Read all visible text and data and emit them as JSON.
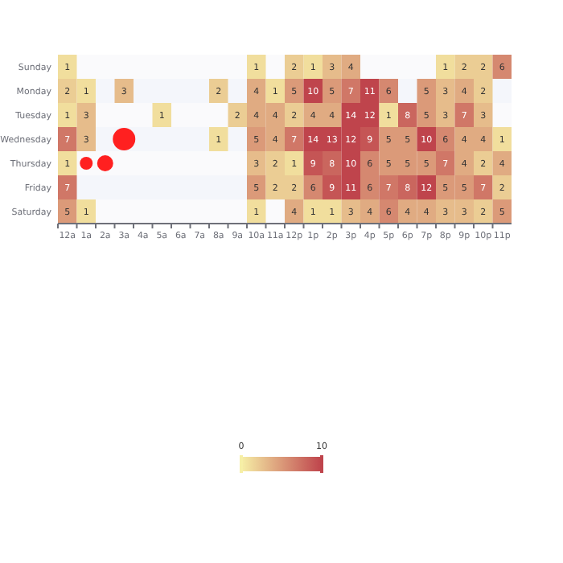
{
  "chart_data": {
    "type": "heatmap",
    "categories": [
      "12a",
      "1a",
      "2a",
      "3a",
      "4a",
      "5a",
      "6a",
      "7a",
      "8a",
      "9a",
      "10a",
      "11a",
      "12p",
      "1p",
      "2p",
      "3p",
      "4p",
      "5p",
      "6p",
      "7p",
      "8p",
      "9p",
      "10p",
      "11p"
    ],
    "y_categories": [
      "Sunday",
      "Monday",
      "Tuesday",
      "Wednesday",
      "Thursday",
      "Friday",
      "Saturday"
    ],
    "cells": [
      [
        1,
        null,
        null,
        null,
        null,
        null,
        null,
        null,
        null,
        null,
        1,
        null,
        2,
        1,
        3,
        4,
        null,
        null,
        null,
        null,
        1,
        2,
        2,
        6
      ],
      [
        2,
        1,
        null,
        3,
        null,
        null,
        null,
        null,
        2,
        null,
        4,
        1,
        5,
        10,
        5,
        7,
        11,
        6,
        null,
        5,
        3,
        4,
        2,
        null
      ],
      [
        1,
        3,
        null,
        null,
        null,
        1,
        null,
        null,
        null,
        2,
        4,
        4,
        2,
        4,
        4,
        14,
        12,
        1,
        8,
        5,
        3,
        7,
        3,
        null
      ],
      [
        7,
        3,
        null,
        null,
        null,
        null,
        null,
        null,
        1,
        null,
        5,
        4,
        7,
        14,
        13,
        12,
        9,
        5,
        5,
        10,
        6,
        4,
        4,
        1
      ],
      [
        1,
        null,
        null,
        null,
        null,
        null,
        null,
        null,
        null,
        null,
        3,
        2,
        1,
        9,
        8,
        10,
        6,
        5,
        5,
        5,
        7,
        4,
        2,
        4
      ],
      [
        7,
        null,
        null,
        null,
        null,
        null,
        null,
        null,
        null,
        null,
        5,
        2,
        2,
        6,
        9,
        11,
        6,
        7,
        8,
        12,
        5,
        5,
        7,
        2
      ],
      [
        5,
        1,
        null,
        null,
        null,
        null,
        null,
        null,
        null,
        null,
        1,
        null,
        4,
        1,
        1,
        3,
        4,
        6,
        4,
        4,
        3,
        3,
        2,
        5
      ]
    ],
    "clim": [
      0,
      10
    ],
    "cticks": [
      0,
      10
    ],
    "colors": [
      "#f6efa6",
      "#bf444c"
    ],
    "data_labels": true
  }
}
